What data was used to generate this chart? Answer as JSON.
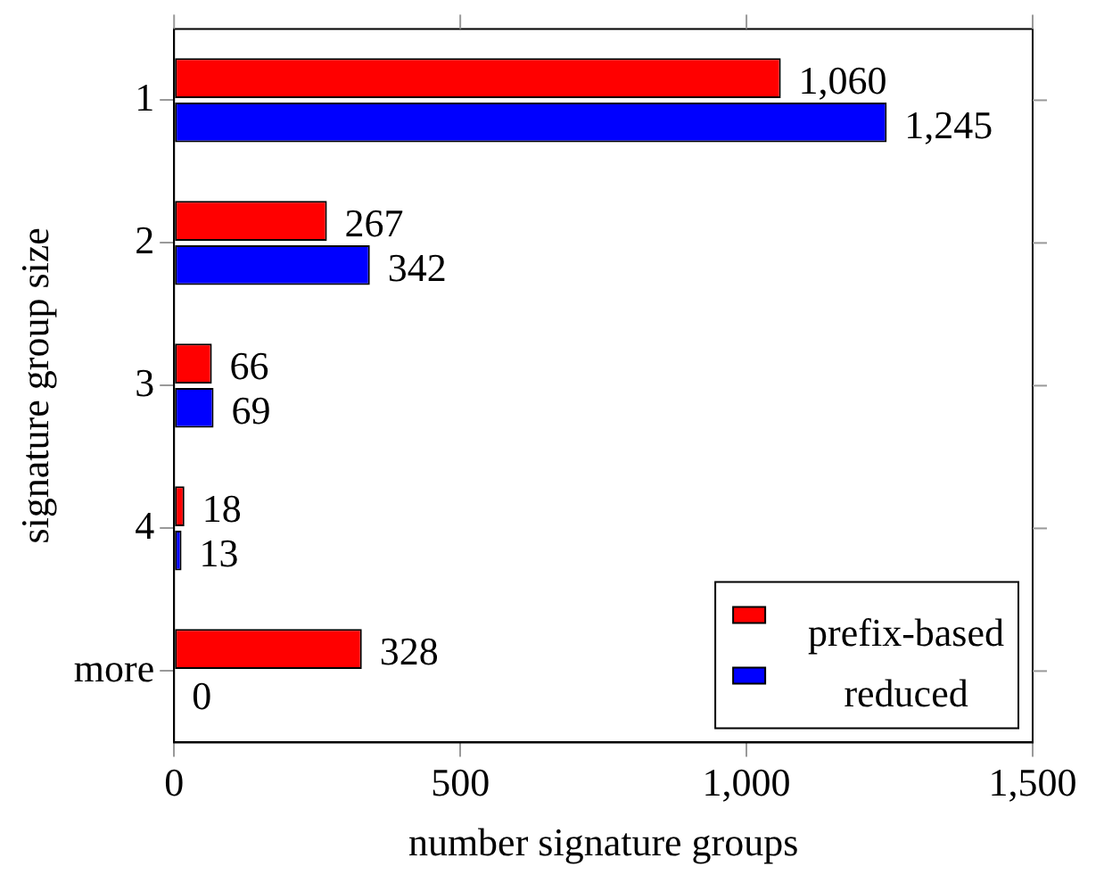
{
  "chart_data": {
    "type": "bar",
    "orientation": "horizontal",
    "xlabel": "number signature groups",
    "ylabel": "signature group size",
    "categories": [
      "1",
      "2",
      "3",
      "4",
      "more"
    ],
    "series": [
      {
        "name": "prefix-based",
        "color": "#ff0000",
        "values": [
          1060,
          267,
          66,
          18,
          328
        ],
        "value_labels": [
          "1,060",
          "267",
          "66",
          "18",
          "328"
        ]
      },
      {
        "name": "reduced",
        "color": "#0000ff",
        "values": [
          1245,
          342,
          69,
          13,
          0
        ],
        "value_labels": [
          "1,245",
          "342",
          "69",
          "13",
          "0"
        ]
      }
    ],
    "xlim": [
      0,
      1500
    ],
    "xticks": [
      0,
      500,
      {
        "value": 1000,
        "label": "1,000"
      },
      {
        "value": 1500,
        "label": "1,500"
      }
    ],
    "grid": false,
    "legend": "bottom right"
  }
}
